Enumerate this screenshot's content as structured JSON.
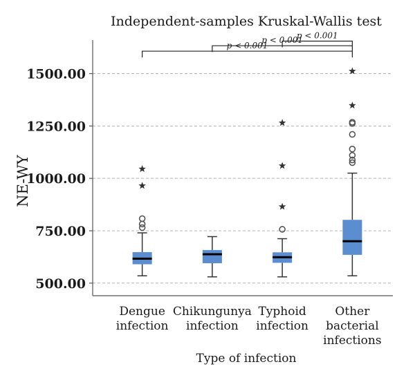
{
  "chart_data": {
    "type": "box",
    "title": "Independent-samples Kruskal-Wallis test",
    "xlabel": "Type of infection",
    "ylabel": "NE-WY",
    "ylim": [
      440,
      1660
    ],
    "yticks": [
      500,
      750,
      1000,
      1250,
      1500
    ],
    "ytick_labels": [
      "500.00",
      "750.00",
      "1000.00",
      "1250.00",
      "1500.00"
    ],
    "grid": true,
    "box_color": "#5b8ed0",
    "categories": [
      {
        "label_lines": [
          "Dengue",
          "infection"
        ]
      },
      {
        "label_lines": [
          "Chikungunya",
          "infection"
        ]
      },
      {
        "label_lines": [
          "Typhoid",
          "infection"
        ]
      },
      {
        "label_lines": [
          "Other",
          "bacterial",
          "infections"
        ]
      }
    ],
    "boxes": [
      {
        "min": 535,
        "q1": 590,
        "median": 617,
        "q3": 648,
        "max": 740,
        "outliers": [
          765,
          782,
          808
        ],
        "extremes": [
          965,
          1045
        ]
      },
      {
        "min": 530,
        "q1": 595,
        "median": 638,
        "q3": 658,
        "max": 722,
        "outliers": [],
        "extremes": []
      },
      {
        "min": 530,
        "q1": 597,
        "median": 624,
        "q3": 647,
        "max": 712,
        "outliers": [
          757
        ],
        "extremes": [
          865,
          1060,
          1265
        ]
      },
      {
        "min": 535,
        "q1": 635,
        "median": 700,
        "q3": 802,
        "max": 1025,
        "outliers": [
          1075,
          1088,
          1110,
          1140,
          1210,
          1262,
          1268
        ],
        "extremes": [
          1348,
          1512
        ]
      }
    ],
    "comparisons": [
      {
        "from": 0,
        "to": 3,
        "y": 1607,
        "label": "p < 0.001"
      },
      {
        "from": 1,
        "to": 3,
        "y": 1633,
        "label": "p < 0.001"
      },
      {
        "from": 2,
        "to": 3,
        "y": 1655,
        "label": "p < 0.001"
      }
    ]
  }
}
